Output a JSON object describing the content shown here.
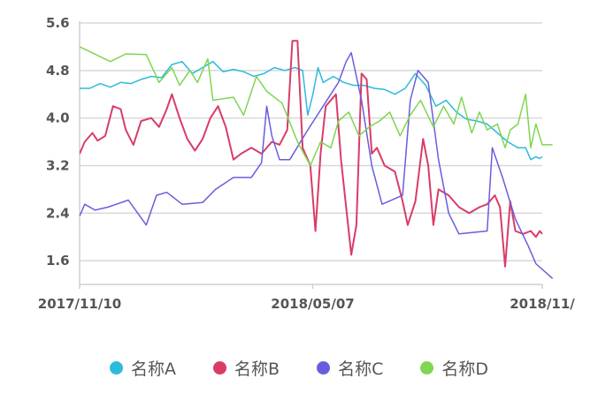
{
  "chart_data": {
    "type": "line",
    "title": "",
    "xlabel": "",
    "ylabel": "",
    "x_ticks": [
      "2017/11/10",
      "2018/05/07",
      "2018/11/"
    ],
    "y_ticks": [
      "1.6",
      "2.4",
      "3.2",
      "4.0",
      "4.8",
      "5.6"
    ],
    "ylim": [
      1.2,
      5.6
    ],
    "grid": true,
    "legend_position": "bottom",
    "x_start": "2017-11-10",
    "x_end": "2018-11-06",
    "x_clip": "2018-11-14",
    "series": [
      {
        "name": "名称A",
        "color": "#2cbadd",
        "points": [
          [
            "2017-11-10",
            4.5
          ],
          [
            "2017-11-18",
            4.5
          ],
          [
            "2017-11-26",
            4.58
          ],
          [
            "2017-12-04",
            4.52
          ],
          [
            "2017-12-12",
            4.6
          ],
          [
            "2017-12-20",
            4.58
          ],
          [
            "2017-12-28",
            4.65
          ],
          [
            "2018-01-05",
            4.7
          ],
          [
            "2018-01-13",
            4.68
          ],
          [
            "2018-01-21",
            4.9
          ],
          [
            "2018-01-29",
            4.95
          ],
          [
            "2018-02-06",
            4.75
          ],
          [
            "2018-02-14",
            4.85
          ],
          [
            "2018-02-22",
            4.95
          ],
          [
            "2018-03-02",
            4.78
          ],
          [
            "2018-03-10",
            4.82
          ],
          [
            "2018-03-18",
            4.78
          ],
          [
            "2018-03-26",
            4.7
          ],
          [
            "2018-04-03",
            4.75
          ],
          [
            "2018-04-11",
            4.85
          ],
          [
            "2018-04-19",
            4.8
          ],
          [
            "2018-04-27",
            4.85
          ],
          [
            "2018-05-03",
            4.8
          ],
          [
            "2018-05-07",
            4.05
          ],
          [
            "2018-05-11",
            4.4
          ],
          [
            "2018-05-15",
            4.85
          ],
          [
            "2018-05-19",
            4.6
          ],
          [
            "2018-05-27",
            4.7
          ],
          [
            "2018-06-04",
            4.6
          ],
          [
            "2018-06-12",
            4.55
          ],
          [
            "2018-06-20",
            4.55
          ],
          [
            "2018-06-28",
            4.5
          ],
          [
            "2018-07-06",
            4.48
          ],
          [
            "2018-07-14",
            4.4
          ],
          [
            "2018-07-22",
            4.5
          ],
          [
            "2018-07-30",
            4.75
          ],
          [
            "2018-08-07",
            4.55
          ],
          [
            "2018-08-15",
            4.2
          ],
          [
            "2018-08-23",
            4.3
          ],
          [
            "2018-08-31",
            4.1
          ],
          [
            "2018-09-08",
            3.98
          ],
          [
            "2018-09-16",
            3.95
          ],
          [
            "2018-09-24",
            3.9
          ],
          [
            "2018-10-02",
            3.75
          ],
          [
            "2018-10-10",
            3.6
          ],
          [
            "2018-10-18",
            3.5
          ],
          [
            "2018-10-24",
            3.5
          ],
          [
            "2018-10-28",
            3.3
          ],
          [
            "2018-11-01",
            3.35
          ],
          [
            "2018-11-04",
            3.32
          ],
          [
            "2018-11-06",
            3.35
          ]
        ]
      },
      {
        "name": "名称B",
        "color": "#d93c67",
        "points": [
          [
            "2017-11-10",
            3.4
          ],
          [
            "2017-11-14",
            3.6
          ],
          [
            "2017-11-20",
            3.75
          ],
          [
            "2017-11-24",
            3.62
          ],
          [
            "2017-11-30",
            3.7
          ],
          [
            "2017-12-06",
            4.2
          ],
          [
            "2017-12-12",
            4.15
          ],
          [
            "2017-12-16",
            3.8
          ],
          [
            "2017-12-22",
            3.55
          ],
          [
            "2017-12-28",
            3.95
          ],
          [
            "2018-01-05",
            4.0
          ],
          [
            "2018-01-11",
            3.85
          ],
          [
            "2018-01-17",
            4.15
          ],
          [
            "2018-01-21",
            4.4
          ],
          [
            "2018-01-27",
            4.0
          ],
          [
            "2018-02-02",
            3.65
          ],
          [
            "2018-02-08",
            3.45
          ],
          [
            "2018-02-14",
            3.65
          ],
          [
            "2018-02-20",
            4.0
          ],
          [
            "2018-02-26",
            4.2
          ],
          [
            "2018-03-04",
            3.85
          ],
          [
            "2018-03-10",
            3.3
          ],
          [
            "2018-03-16",
            3.4
          ],
          [
            "2018-03-24",
            3.5
          ],
          [
            "2018-04-01",
            3.4
          ],
          [
            "2018-04-09",
            3.6
          ],
          [
            "2018-04-15",
            3.55
          ],
          [
            "2018-04-21",
            3.8
          ],
          [
            "2018-04-25",
            5.3
          ],
          [
            "2018-04-29",
            5.3
          ],
          [
            "2018-05-03",
            3.5
          ],
          [
            "2018-05-09",
            3.2
          ],
          [
            "2018-05-13",
            2.1
          ],
          [
            "2018-05-17",
            3.4
          ],
          [
            "2018-05-21",
            4.2
          ],
          [
            "2018-05-29",
            4.4
          ],
          [
            "2018-06-02",
            3.3
          ],
          [
            "2018-06-06",
            2.5
          ],
          [
            "2018-06-10",
            1.7
          ],
          [
            "2018-06-14",
            2.2
          ],
          [
            "2018-06-18",
            4.75
          ],
          [
            "2018-06-22",
            4.65
          ],
          [
            "2018-06-26",
            3.4
          ],
          [
            "2018-06-30",
            3.5
          ],
          [
            "2018-07-06",
            3.2
          ],
          [
            "2018-07-14",
            3.1
          ],
          [
            "2018-07-20",
            2.6
          ],
          [
            "2018-07-24",
            2.2
          ],
          [
            "2018-07-30",
            2.6
          ],
          [
            "2018-08-05",
            3.65
          ],
          [
            "2018-08-09",
            3.2
          ],
          [
            "2018-08-13",
            2.2
          ],
          [
            "2018-08-17",
            2.8
          ],
          [
            "2018-08-25",
            2.7
          ],
          [
            "2018-09-02",
            2.5
          ],
          [
            "2018-09-10",
            2.4
          ],
          [
            "2018-09-18",
            2.5
          ],
          [
            "2018-09-24",
            2.55
          ],
          [
            "2018-09-30",
            2.7
          ],
          [
            "2018-10-04",
            2.5
          ],
          [
            "2018-10-08",
            1.5
          ],
          [
            "2018-10-12",
            2.6
          ],
          [
            "2018-10-16",
            2.1
          ],
          [
            "2018-10-22",
            2.05
          ],
          [
            "2018-10-28",
            2.1
          ],
          [
            "2018-11-01",
            2.0
          ],
          [
            "2018-11-04",
            2.1
          ],
          [
            "2018-11-06",
            2.05
          ]
        ]
      },
      {
        "name": "名称C",
        "color": "#6a5ddc",
        "points": [
          [
            "2017-11-10",
            2.35
          ],
          [
            "2017-11-14",
            2.55
          ],
          [
            "2017-11-22",
            2.45
          ],
          [
            "2017-12-02",
            2.5
          ],
          [
            "2017-12-18",
            2.62
          ],
          [
            "2018-01-01",
            2.2
          ],
          [
            "2018-01-09",
            2.7
          ],
          [
            "2018-01-17",
            2.75
          ],
          [
            "2018-01-29",
            2.55
          ],
          [
            "2018-02-14",
            2.58
          ],
          [
            "2018-02-24",
            2.8
          ],
          [
            "2018-03-10",
            3.0
          ],
          [
            "2018-03-24",
            3.0
          ],
          [
            "2018-04-01",
            3.25
          ],
          [
            "2018-04-05",
            4.2
          ],
          [
            "2018-04-09",
            3.7
          ],
          [
            "2018-04-15",
            3.3
          ],
          [
            "2018-04-23",
            3.3
          ],
          [
            "2018-05-07",
            3.8
          ],
          [
            "2018-05-31",
            4.6
          ],
          [
            "2018-06-06",
            4.95
          ],
          [
            "2018-06-10",
            5.1
          ],
          [
            "2018-06-18",
            4.3
          ],
          [
            "2018-06-26",
            3.2
          ],
          [
            "2018-07-04",
            2.55
          ],
          [
            "2018-07-20",
            2.7
          ],
          [
            "2018-07-26",
            4.3
          ],
          [
            "2018-08-01",
            4.8
          ],
          [
            "2018-08-09",
            4.6
          ],
          [
            "2018-08-17",
            3.3
          ],
          [
            "2018-08-25",
            2.4
          ],
          [
            "2018-09-02",
            2.05
          ],
          [
            "2018-09-24",
            2.1
          ],
          [
            "2018-09-28",
            3.5
          ],
          [
            "2018-10-06",
            3.0
          ],
          [
            "2018-10-16",
            2.3
          ],
          [
            "2018-10-26",
            1.85
          ],
          [
            "2018-11-01",
            1.55
          ],
          [
            "2018-11-14",
            1.3
          ]
        ]
      },
      {
        "name": "名称D",
        "color": "#7ed652",
        "points": [
          [
            "2017-11-10",
            5.2
          ],
          [
            "2017-12-04",
            4.95
          ],
          [
            "2017-12-16",
            5.08
          ],
          [
            "2018-01-01",
            5.07
          ],
          [
            "2018-01-11",
            4.6
          ],
          [
            "2018-01-21",
            4.85
          ],
          [
            "2018-01-27",
            4.55
          ],
          [
            "2018-02-04",
            4.8
          ],
          [
            "2018-02-10",
            4.6
          ],
          [
            "2018-02-18",
            5.0
          ],
          [
            "2018-02-22",
            4.3
          ],
          [
            "2018-03-10",
            4.35
          ],
          [
            "2018-03-18",
            4.05
          ],
          [
            "2018-03-28",
            4.7
          ],
          [
            "2018-04-05",
            4.45
          ],
          [
            "2018-04-17",
            4.25
          ],
          [
            "2018-04-29",
            3.6
          ],
          [
            "2018-05-09",
            3.2
          ],
          [
            "2018-05-17",
            3.6
          ],
          [
            "2018-05-25",
            3.5
          ],
          [
            "2018-05-31",
            3.95
          ],
          [
            "2018-06-08",
            4.1
          ],
          [
            "2018-06-16",
            3.7
          ],
          [
            "2018-06-24",
            3.85
          ],
          [
            "2018-07-02",
            3.95
          ],
          [
            "2018-07-10",
            4.1
          ],
          [
            "2018-07-18",
            3.7
          ],
          [
            "2018-07-26",
            4.05
          ],
          [
            "2018-08-03",
            4.3
          ],
          [
            "2018-08-13",
            3.85
          ],
          [
            "2018-08-21",
            4.2
          ],
          [
            "2018-08-29",
            3.9
          ],
          [
            "2018-09-04",
            4.35
          ],
          [
            "2018-09-12",
            3.75
          ],
          [
            "2018-09-18",
            4.1
          ],
          [
            "2018-09-24",
            3.8
          ],
          [
            "2018-10-02",
            3.9
          ],
          [
            "2018-10-08",
            3.5
          ],
          [
            "2018-10-12",
            3.8
          ],
          [
            "2018-10-18",
            3.9
          ],
          [
            "2018-10-24",
            4.4
          ],
          [
            "2018-10-28",
            3.5
          ],
          [
            "2018-11-01",
            3.9
          ],
          [
            "2018-11-06",
            3.55
          ],
          [
            "2018-11-14",
            3.55
          ]
        ]
      }
    ]
  }
}
